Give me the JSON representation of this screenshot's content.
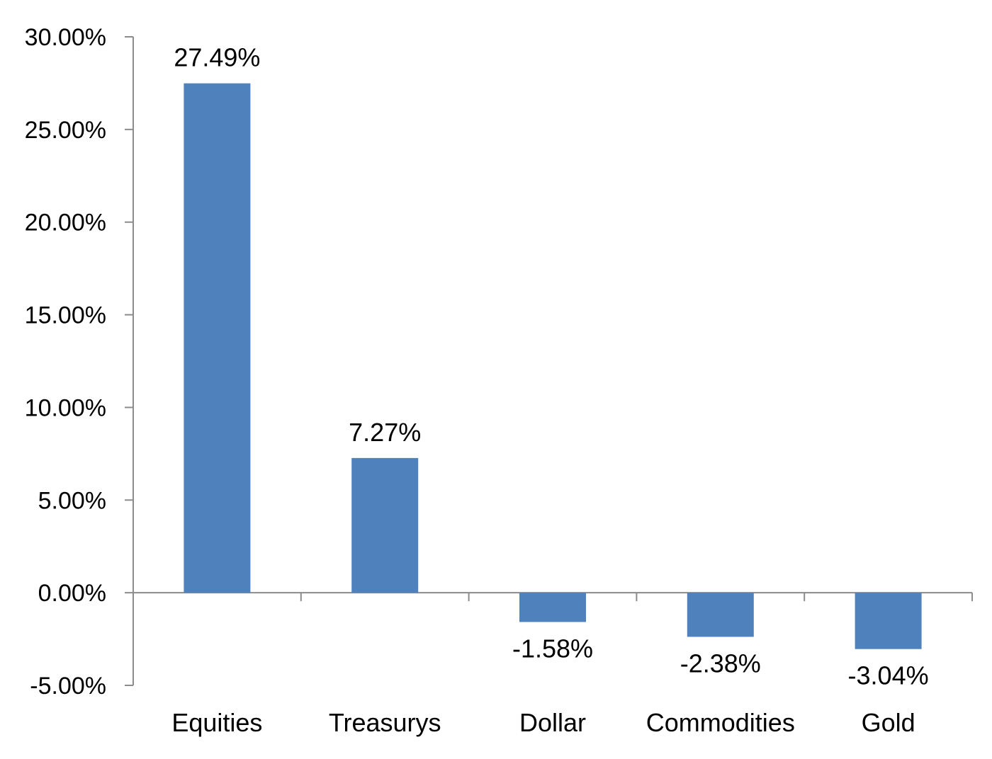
{
  "chart_data": {
    "type": "bar",
    "title": "",
    "xlabel": "",
    "ylabel": "",
    "categories": [
      "Equities",
      "Treasurys",
      "Dollar",
      "Commodities",
      "Gold"
    ],
    "values": [
      27.49,
      7.27,
      -1.58,
      -2.38,
      -3.04
    ],
    "data_labels": [
      "27.49%",
      "7.27%",
      "-1.58%",
      "-2.38%",
      "-3.04%"
    ],
    "ylim": [
      -5,
      30
    ],
    "yticks": [
      30,
      25,
      20,
      15,
      10,
      5,
      0,
      -5
    ],
    "ytick_labels": [
      "30.00%",
      "25.00%",
      "20.00%",
      "15.00%",
      "10.00%",
      "5.00%",
      "0.00%",
      "-5.00%"
    ],
    "grid": false,
    "legend": "none",
    "bar_color": "#4f81bd",
    "axis_color": "#8c8c8c"
  }
}
